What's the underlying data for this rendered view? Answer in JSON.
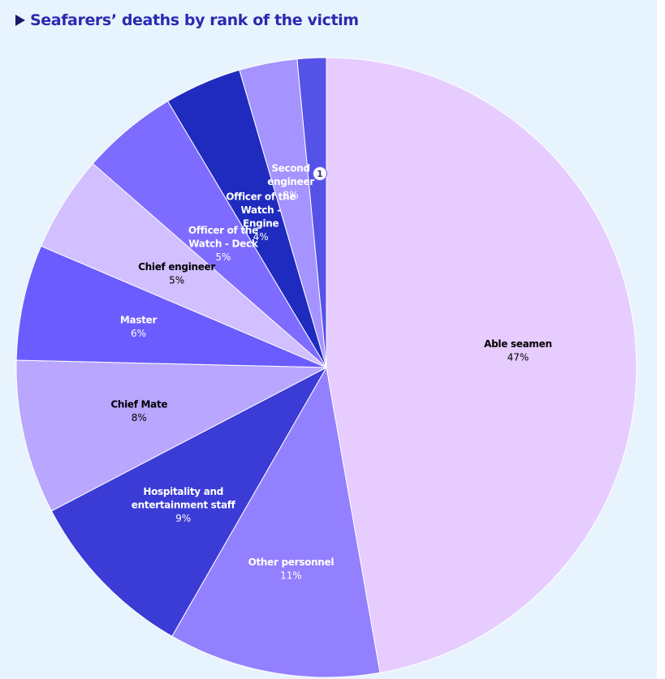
{
  "title": "Seafarers’ deaths by rank of the victim",
  "chart_data": {
    "type": "pie",
    "title": "Seafarers’ deaths by rank of the victim",
    "start_angle_deg": 0,
    "direction": "clockwise",
    "slices": [
      {
        "label": [
          "Able seamen"
        ],
        "name": "Able seamen",
        "value": 47,
        "value_label": "47%",
        "color": "#e6ccff",
        "text_color": "#000000"
      },
      {
        "label": [
          "Other personnel"
        ],
        "name": "Other personnel",
        "value": 11,
        "value_label": "11%",
        "color": "#9380ff",
        "text_color": "#ffffff"
      },
      {
        "label": [
          "Hospitality and",
          "entertainment staff"
        ],
        "name": "Hospitality and entertainment staff",
        "value": 9,
        "value_label": "9%",
        "color": "#3b3bd6",
        "text_color": "#ffffff"
      },
      {
        "label": [
          "Chief Mate"
        ],
        "name": "Chief Mate",
        "value": 8,
        "value_label": "8%",
        "color": "#b8a6ff",
        "text_color": "#000000"
      },
      {
        "label": [
          "Master"
        ],
        "name": "Master",
        "value": 6,
        "value_label": "6%",
        "color": "#6b5cff",
        "text_color": "#ffffff"
      },
      {
        "label": [
          "Chief engineer"
        ],
        "name": "Chief engineer",
        "value": 5,
        "value_label": "5%",
        "color": "#d1bfff",
        "text_color": "#000000"
      },
      {
        "label": [
          "Officer of the",
          "Watch - Deck"
        ],
        "name": "Officer of the Watch - Deck",
        "value": 5,
        "value_label": "5%",
        "color": "#7e6bff",
        "text_color": "#ffffff"
      },
      {
        "label": [
          "Officer of the",
          "Watch -",
          "Engine"
        ],
        "name": "Officer of the Watch - Engine",
        "value": 4,
        "value_label": "4%",
        "color": "#1f2bbf",
        "text_color": "#ffffff"
      },
      {
        "label": [
          "Second",
          "engineer"
        ],
        "name": "Second engineer",
        "value": 3,
        "value_label": "3%",
        "color": "#a593ff",
        "text_color": "#ffffff"
      },
      {
        "label": [],
        "name": "",
        "value": 1.5,
        "value_label": "",
        "color": "#5552e8",
        "text_color": "#ffffff"
      }
    ],
    "annotations": [
      {
        "text": "1"
      }
    ]
  }
}
